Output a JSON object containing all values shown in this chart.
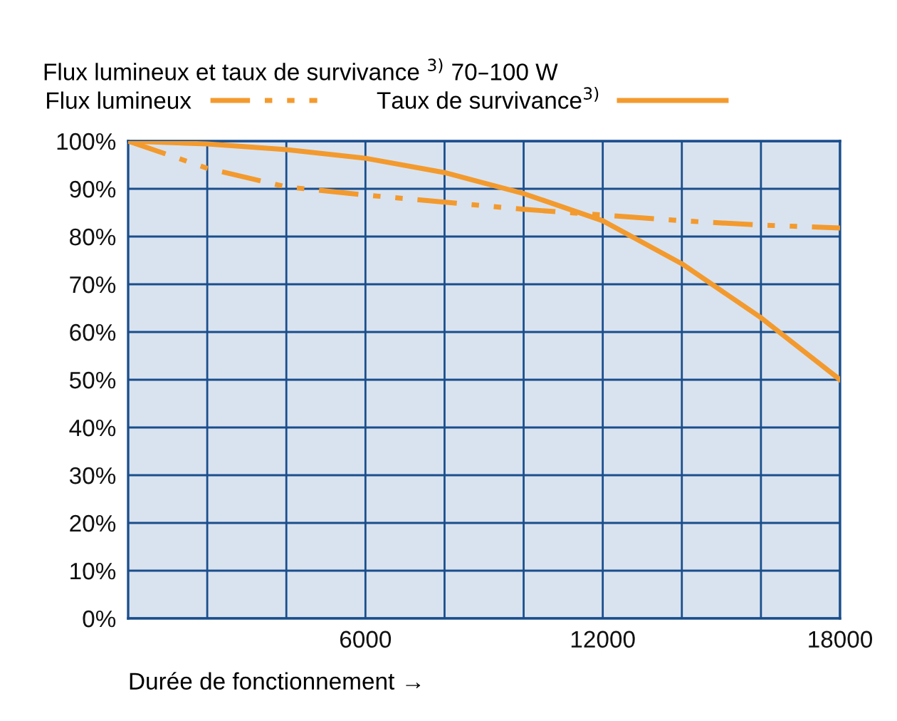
{
  "chart_data": {
    "type": "line",
    "title": "Flux lumineux et taux de survivance $^{3)}$ 70–100 W",
    "xlabel": "Durée de fonctionnement →",
    "x": [
      0,
      2000,
      4000,
      6000,
      8000,
      10000,
      12000,
      14000,
      16000,
      18000
    ],
    "series": [
      {
        "name": "Flux lumineux",
        "color": "#f39a2e",
        "line_style": "dashdot",
        "values": [
          100,
          94.3,
          90.4,
          88.7,
          87.2,
          85.7,
          84.5,
          83.3,
          82.4,
          81.8
        ]
      },
      {
        "name": "Taux de survivance$^{3)}$",
        "color": "#f39a2e",
        "line_style": "solid",
        "values": [
          100,
          99.4,
          98.2,
          96.4,
          93.4,
          89,
          83.3,
          74.3,
          63,
          50
        ]
      }
    ],
    "xlim": [
      0,
      18000
    ],
    "ylim": [
      0,
      100
    ],
    "xticks": [
      {
        "value": 2000,
        "label": null
      },
      {
        "value": 4000,
        "label": null
      },
      {
        "value": 6000,
        "label": "6000"
      },
      {
        "value": 8000,
        "label": null
      },
      {
        "value": 10000,
        "label": null
      },
      {
        "value": 12000,
        "label": "12000"
      },
      {
        "value": 14000,
        "label": null
      },
      {
        "value": 16000,
        "label": null
      },
      {
        "value": 18000,
        "label": "18000"
      }
    ],
    "yticks": [
      {
        "value": 0,
        "label": "0%"
      },
      {
        "value": 10,
        "label": "10%"
      },
      {
        "value": 20,
        "label": "20%"
      },
      {
        "value": 30,
        "label": "30%"
      },
      {
        "value": 40,
        "label": "40%"
      },
      {
        "value": 50,
        "label": "50%"
      },
      {
        "value": 60,
        "label": "60%"
      },
      {
        "value": 70,
        "label": "70%"
      },
      {
        "value": 80,
        "label": "80%"
      },
      {
        "value": 90,
        "label": "90%"
      },
      {
        "value": 100,
        "label": "100%"
      }
    ],
    "grid": true,
    "legend": "top",
    "marker": "none"
  }
}
